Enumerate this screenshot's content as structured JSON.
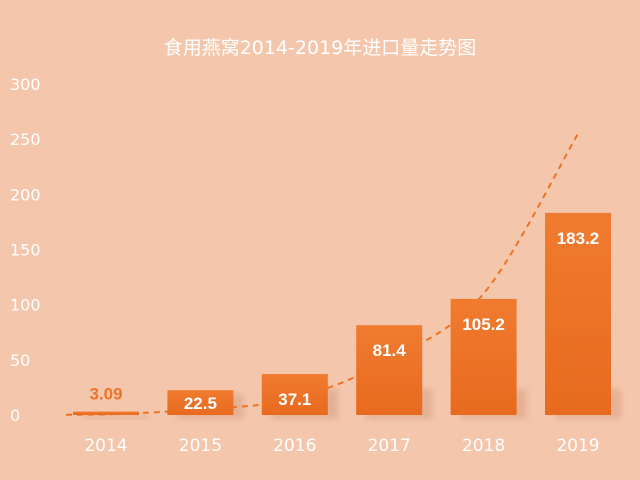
{
  "chart_data": {
    "type": "bar",
    "title": "食用燕窝2014-2019年进口量走势图",
    "categories": [
      "2014",
      "2015",
      "2016",
      "2017",
      "2018",
      "2019"
    ],
    "values": [
      3.09,
      22.5,
      37.1,
      81.4,
      105.2,
      183.2
    ],
    "data_labels": [
      "3.09",
      "22.5",
      "37.1",
      "81.4",
      "105.2",
      "183.2"
    ],
    "y_ticks": [
      "0",
      "50",
      "100",
      "150",
      "200",
      "250",
      "300"
    ],
    "ylim": [
      0,
      300
    ],
    "grid": false,
    "trend_line": {
      "style": "dashed-curve",
      "values": [
        0.5,
        5,
        15,
        50,
        110,
        255
      ]
    },
    "colors": {
      "background": "#f4c6ac",
      "bar": "#ec7428",
      "trend": "#ec7428",
      "label_inside": "#ffffff",
      "label_outside": "#ec7428",
      "axis_text": "#ffffff",
      "title": "#ffffff"
    }
  }
}
